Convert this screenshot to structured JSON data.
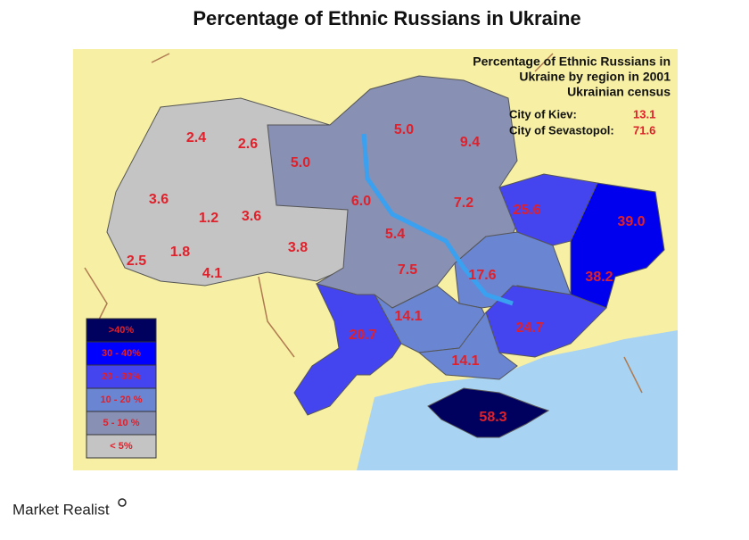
{
  "title": "Percentage of Ethnic Russians in Ukraine",
  "inset": {
    "title_lines": [
      "Percentage of Ethnic Russians in",
      "Ukraine by region in 2001",
      "Ukrainian census"
    ],
    "cities": [
      {
        "label": "City of Kiev:",
        "value": "13.1"
      },
      {
        "label": "City of Sevastopol:",
        "value": "71.6"
      }
    ]
  },
  "regions": [
    "2.4",
    "2.6",
    "5.0",
    "5.0",
    "9.4",
    "3.6",
    "1.2",
    "3.6",
    "6.0",
    "7.2",
    "25.6",
    "39.0",
    "5.4",
    "3.8",
    "2.5",
    "1.8",
    "4.1",
    "7.5",
    "17.6",
    "38.2",
    "14.1",
    "20.7",
    "24.7",
    "14.1",
    "58.3"
  ],
  "legend": [
    ">40%",
    "30 - 40%",
    "20 - 30%",
    "10 - 20 %",
    "5 - 10 %",
    "< 5%"
  ],
  "footer": {
    "brand": "Market Realist"
  }
}
